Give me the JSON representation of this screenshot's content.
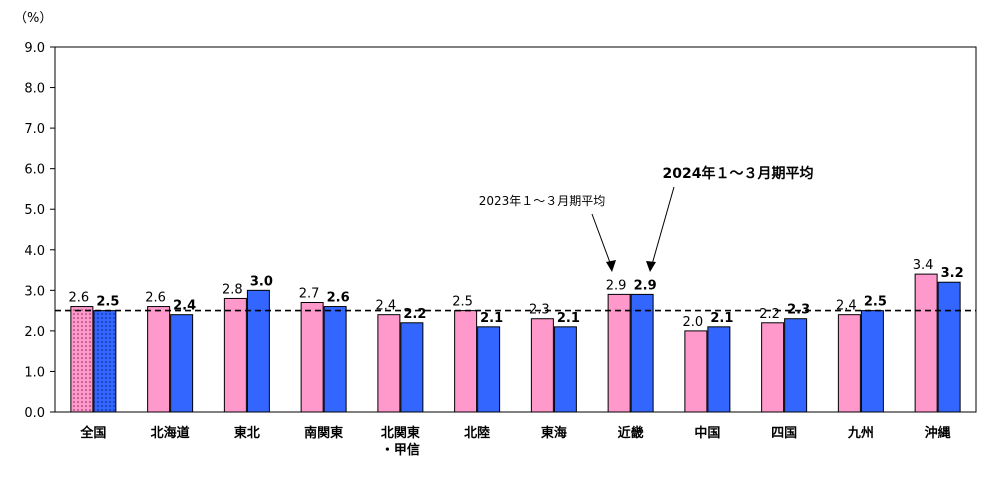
{
  "chart_data": {
    "type": "bar",
    "unit_label": "（%）",
    "categories": [
      "全国",
      "北海道",
      "東北",
      "南関東",
      "北関東\n・甲信",
      "北陸",
      "東海",
      "近畿",
      "中国",
      "四国",
      "九州",
      "沖縄"
    ],
    "series": [
      {
        "name": "2023年１～３月期平均",
        "color": "#ff99cc",
        "values": [
          2.6,
          2.6,
          2.8,
          2.7,
          2.4,
          2.5,
          2.3,
          2.9,
          2.0,
          2.2,
          2.4,
          3.4
        ]
      },
      {
        "name": "2024年１～３月期平均",
        "color": "#3366ff",
        "values": [
          2.5,
          2.4,
          3.0,
          2.6,
          2.2,
          2.1,
          2.1,
          2.9,
          2.1,
          2.3,
          2.5,
          3.2
        ]
      }
    ],
    "value_labels": [
      [
        "2.6",
        "2.6",
        "2.8",
        "2.7",
        "2.4",
        "2.5",
        "2.3",
        "2.9",
        "2.0",
        "2.2",
        "2.4",
        "3.4"
      ],
      [
        "2.5",
        "2.4",
        "3.0",
        "2.6",
        "2.2",
        "2.1",
        "2.1",
        "2.9",
        "2.1",
        "2.3",
        "2.5",
        "3.2"
      ]
    ],
    "yticks": [
      "0.0",
      "1.0",
      "2.0",
      "3.0",
      "4.0",
      "5.0",
      "6.0",
      "7.0",
      "8.0",
      "9.0"
    ],
    "ylim": [
      0,
      9
    ],
    "reference_line": 2.5,
    "national_pattern": "dotted",
    "grid": false
  }
}
